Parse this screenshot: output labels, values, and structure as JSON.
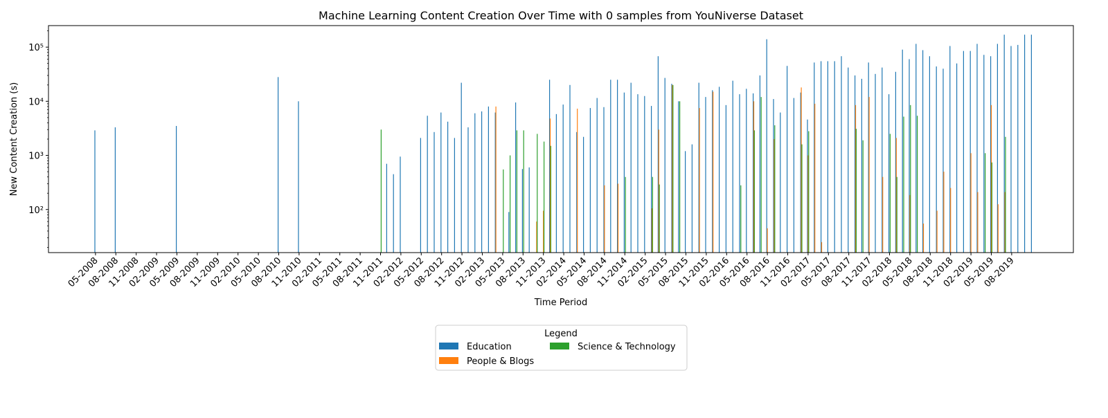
{
  "chart_data": {
    "type": "bar",
    "title": "Machine Learning Content Creation Over Time with 0 samples from YouNiverse Dataset",
    "xlabel": "Time Period",
    "ylabel": "New Content Creation (s)",
    "yscale": "log",
    "ylim": [
      16,
      250000
    ],
    "y_ticks": [
      {
        "value": 100,
        "label": "10²"
      },
      {
        "value": 1000,
        "label": "10³"
      },
      {
        "value": 10000,
        "label": "10⁴"
      },
      {
        "value": 100000,
        "label": "10⁵"
      }
    ],
    "start_month": "05-2008",
    "month_count": 137,
    "x_tick_labels": [
      "05-2008",
      "08-2008",
      "11-2008",
      "02-2009",
      "05-2009",
      "08-2009",
      "11-2009",
      "02-2010",
      "05-2010",
      "08-2010",
      "11-2010",
      "02-2011",
      "05-2011",
      "08-2011",
      "11-2011",
      "02-2012",
      "05-2012",
      "08-2012",
      "11-2012",
      "02-2013",
      "05-2013",
      "08-2013",
      "11-2013",
      "02-2014",
      "05-2014",
      "08-2014",
      "11-2014",
      "02-2015",
      "05-2015",
      "08-2015",
      "11-2015",
      "02-2016",
      "05-2016",
      "08-2016",
      "11-2016",
      "02-2017",
      "05-2017",
      "08-2017",
      "11-2017",
      "02-2018",
      "05-2018",
      "08-2018",
      "11-2018",
      "02-2019",
      "05-2019",
      "08-2019"
    ],
    "legend": {
      "title": "Legend",
      "placement": "below"
    },
    "series": [
      {
        "name": "Education",
        "color": "#1f77b4",
        "points": [
          [
            "05-2008",
            2900
          ],
          [
            "08-2008",
            3300
          ],
          [
            "05-2009",
            3500
          ],
          [
            "08-2010",
            28000
          ],
          [
            "11-2010",
            10000
          ],
          [
            "12-2011",
            700
          ],
          [
            "01-2012",
            450
          ],
          [
            "02-2012",
            950
          ],
          [
            "05-2012",
            2100
          ],
          [
            "06-2012",
            5400
          ],
          [
            "07-2012",
            2700
          ],
          [
            "08-2012",
            6200
          ],
          [
            "09-2012",
            4200
          ],
          [
            "10-2012",
            2100
          ],
          [
            "11-2012",
            22000
          ],
          [
            "12-2012",
            3300
          ],
          [
            "01-2013",
            6000
          ],
          [
            "02-2013",
            6500
          ],
          [
            "03-2013",
            8000
          ],
          [
            "04-2013",
            6200
          ],
          [
            "06-2013",
            90
          ],
          [
            "07-2013",
            9500
          ],
          [
            "08-2013",
            560
          ],
          [
            "09-2013",
            600
          ],
          [
            "12-2013",
            25000
          ],
          [
            "01-2014",
            5800
          ],
          [
            "02-2014",
            8700
          ],
          [
            "03-2014",
            20000
          ],
          [
            "04-2014",
            2700
          ],
          [
            "05-2014",
            2200
          ],
          [
            "06-2014",
            7500
          ],
          [
            "07-2014",
            11500
          ],
          [
            "08-2014",
            7800
          ],
          [
            "09-2014",
            25000
          ],
          [
            "10-2014",
            25000
          ],
          [
            "11-2014",
            14500
          ],
          [
            "12-2014",
            22000
          ],
          [
            "01-2015",
            13500
          ],
          [
            "02-2015",
            12500
          ],
          [
            "03-2015",
            8200
          ],
          [
            "04-2015",
            68000
          ],
          [
            "05-2015",
            27000
          ],
          [
            "06-2015",
            21000
          ],
          [
            "07-2015",
            10000
          ],
          [
            "08-2015",
            1200
          ],
          [
            "09-2015",
            1600
          ],
          [
            "10-2015",
            22000
          ],
          [
            "11-2015",
            12000
          ],
          [
            "12-2015",
            16000
          ],
          [
            "01-2016",
            18500
          ],
          [
            "02-2016",
            8500
          ],
          [
            "03-2016",
            24000
          ],
          [
            "04-2016",
            13500
          ],
          [
            "05-2016",
            17000
          ],
          [
            "06-2016",
            14000
          ],
          [
            "07-2016",
            30000
          ],
          [
            "08-2016",
            140000
          ],
          [
            "09-2016",
            11000
          ],
          [
            "10-2016",
            6200
          ],
          [
            "11-2016",
            45000
          ],
          [
            "12-2016",
            11500
          ],
          [
            "01-2017",
            14500
          ],
          [
            "02-2017",
            4600
          ],
          [
            "03-2017",
            52000
          ],
          [
            "04-2017",
            55000
          ],
          [
            "05-2017",
            55000
          ],
          [
            "06-2017",
            55000
          ],
          [
            "07-2017",
            68000
          ],
          [
            "08-2017",
            42000
          ],
          [
            "09-2017",
            30000
          ],
          [
            "10-2017",
            26000
          ],
          [
            "11-2017",
            52000
          ],
          [
            "12-2017",
            32000
          ],
          [
            "01-2018",
            42000
          ],
          [
            "02-2018",
            13500
          ],
          [
            "03-2018",
            35000
          ],
          [
            "04-2018",
            90000
          ],
          [
            "05-2018",
            60000
          ],
          [
            "06-2018",
            115000
          ],
          [
            "07-2018",
            88000
          ],
          [
            "08-2018",
            68000
          ],
          [
            "09-2018",
            44000
          ],
          [
            "10-2018",
            40000
          ],
          [
            "11-2018",
            105000
          ],
          [
            "12-2018",
            50000
          ],
          [
            "01-2019",
            85000
          ],
          [
            "02-2019",
            85000
          ],
          [
            "03-2019",
            115000
          ],
          [
            "04-2019",
            72000
          ],
          [
            "05-2019",
            68000
          ],
          [
            "06-2019",
            115000
          ],
          [
            "07-2019",
            170000
          ],
          [
            "08-2019",
            105000
          ],
          [
            "09-2019",
            110000
          ],
          [
            "10-2019",
            170000
          ],
          [
            "11-2019",
            170000
          ]
        ]
      },
      {
        "name": "People & Blogs",
        "color": "#ff7f0e",
        "points": [
          [
            "04-2013",
            8000
          ],
          [
            "10-2013",
            60
          ],
          [
            "11-2013",
            95
          ],
          [
            "12-2013",
            4800
          ],
          [
            "04-2014",
            7300
          ],
          [
            "08-2014",
            280
          ],
          [
            "10-2014",
            300
          ],
          [
            "03-2015",
            105
          ],
          [
            "04-2015",
            3000
          ],
          [
            "06-2015",
            20000
          ],
          [
            "10-2015",
            7500
          ],
          [
            "12-2015",
            15000
          ],
          [
            "06-2016",
            10000
          ],
          [
            "08-2016",
            45
          ],
          [
            "09-2016",
            2000
          ],
          [
            "01-2017",
            18000
          ],
          [
            "02-2017",
            1000
          ],
          [
            "03-2017",
            9000
          ],
          [
            "04-2017",
            25
          ],
          [
            "09-2017",
            8500
          ],
          [
            "11-2017",
            12000
          ],
          [
            "01-2018",
            400
          ],
          [
            "03-2018",
            2100
          ],
          [
            "05-2018",
            185
          ],
          [
            "07-2018",
            55
          ],
          [
            "09-2018",
            95
          ],
          [
            "10-2018",
            500
          ],
          [
            "11-2018",
            250
          ],
          [
            "02-2019",
            1100
          ],
          [
            "03-2019",
            210
          ],
          [
            "05-2019",
            8500
          ],
          [
            "06-2019",
            125
          ],
          [
            "07-2019",
            210
          ]
        ]
      },
      {
        "name": "Science & Technology",
        "color": "#2ca02c",
        "points": [
          [
            "11-2011",
            3000
          ],
          [
            "05-2013",
            550
          ],
          [
            "06-2013",
            1000
          ],
          [
            "07-2013",
            2900
          ],
          [
            "08-2013",
            2900
          ],
          [
            "10-2013",
            2500
          ],
          [
            "11-2013",
            1800
          ],
          [
            "12-2013",
            1500
          ],
          [
            "11-2014",
            400
          ],
          [
            "03-2015",
            400
          ],
          [
            "04-2015",
            290
          ],
          [
            "06-2015",
            20000
          ],
          [
            "07-2015",
            10000
          ],
          [
            "04-2016",
            280
          ],
          [
            "06-2016",
            2900
          ],
          [
            "07-2016",
            12000
          ],
          [
            "09-2016",
            3600
          ],
          [
            "01-2017",
            1600
          ],
          [
            "02-2017",
            2800
          ],
          [
            "09-2017",
            3100
          ],
          [
            "10-2017",
            1900
          ],
          [
            "02-2018",
            2500
          ],
          [
            "03-2018",
            400
          ],
          [
            "04-2018",
            5200
          ],
          [
            "05-2018",
            8500
          ],
          [
            "06-2018",
            5400
          ],
          [
            "04-2019",
            1100
          ],
          [
            "05-2019",
            740
          ],
          [
            "07-2019",
            2200
          ]
        ]
      }
    ]
  }
}
